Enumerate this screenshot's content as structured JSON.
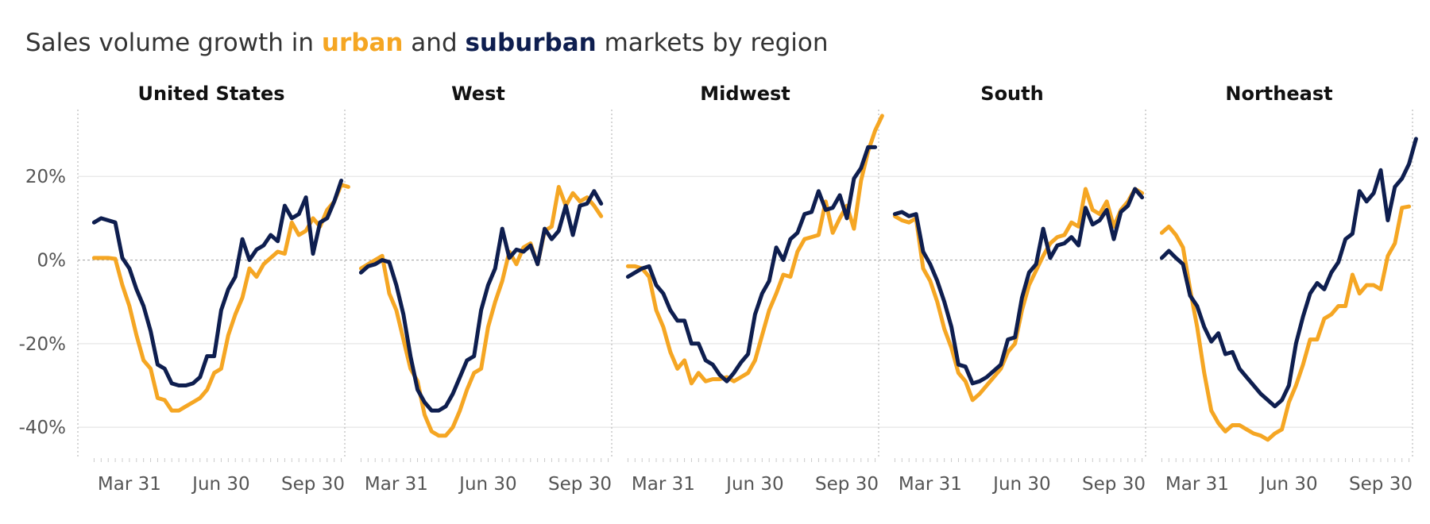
{
  "title": {
    "prefix": "Sales volume growth in ",
    "urban": "urban",
    "middle": " and ",
    "suburban": "suburban",
    "suffix": " markets by region"
  },
  "colors": {
    "urban": "#F5A623",
    "suburban": "#0E1E4F",
    "grid": "#e6e6e6",
    "zero_line": "#aaaaaa",
    "divider": "#bbbbbb"
  },
  "chart_data": {
    "type": "line",
    "grid": true,
    "ylim": [
      -0.47,
      0.36
    ],
    "y_ticks": [
      {
        "value": 0.2,
        "label": "20%"
      },
      {
        "value": 0.0,
        "label": "0%"
      },
      {
        "value": -0.2,
        "label": "-20%"
      },
      {
        "value": -0.4,
        "label": "-40%"
      }
    ],
    "x_ticks": [
      {
        "week": 5,
        "label": "Mar 31"
      },
      {
        "week": 18,
        "label": "Jun 30"
      },
      {
        "week": 31,
        "label": "Sep 30"
      }
    ],
    "x_range": [
      -2.3,
      35.5
    ],
    "panels": [
      {
        "name": "United States",
        "series": [
          {
            "name": "urban",
            "values": [
              0.005,
              0.005,
              0.005,
              0.003,
              -0.06,
              -0.11,
              -0.18,
              -0.24,
              -0.26,
              -0.33,
              -0.335,
              -0.36,
              -0.36,
              -0.35,
              -0.34,
              -0.33,
              -0.31,
              -0.27,
              -0.26,
              -0.18,
              -0.13,
              -0.09,
              -0.02,
              -0.04,
              -0.01,
              0.005,
              0.02,
              0.015,
              0.09,
              0.06,
              0.07,
              0.1,
              0.08,
              0.12,
              0.14,
              0.18,
              0.175
            ]
          },
          {
            "name": "suburban",
            "values": [
              0.09,
              0.1,
              0.095,
              0.09,
              0.005,
              -0.02,
              -0.07,
              -0.11,
              -0.17,
              -0.25,
              -0.26,
              -0.295,
              -0.3,
              -0.3,
              -0.295,
              -0.28,
              -0.23,
              -0.23,
              -0.12,
              -0.07,
              -0.04,
              0.05,
              0.0,
              0.025,
              0.035,
              0.06,
              0.045,
              0.13,
              0.1,
              0.11,
              0.15,
              0.015,
              0.09,
              0.1,
              0.14,
              0.19
            ]
          }
        ]
      },
      {
        "name": "West",
        "series": [
          {
            "name": "urban",
            "values": [
              -0.02,
              -0.01,
              0.0,
              0.01,
              -0.08,
              -0.12,
              -0.19,
              -0.26,
              -0.29,
              -0.37,
              -0.41,
              -0.42,
              -0.42,
              -0.4,
              -0.36,
              -0.31,
              -0.27,
              -0.26,
              -0.16,
              -0.1,
              -0.05,
              0.02,
              -0.01,
              0.03,
              0.04,
              -0.01,
              0.07,
              0.08,
              0.175,
              0.13,
              0.16,
              0.14,
              0.15,
              0.13,
              0.105
            ]
          },
          {
            "name": "suburban",
            "values": [
              -0.03,
              -0.015,
              -0.01,
              0.0,
              -0.005,
              -0.06,
              -0.13,
              -0.23,
              -0.31,
              -0.34,
              -0.36,
              -0.36,
              -0.35,
              -0.32,
              -0.28,
              -0.24,
              -0.23,
              -0.12,
              -0.06,
              -0.02,
              0.075,
              0.005,
              0.025,
              0.02,
              0.035,
              -0.01,
              0.075,
              0.05,
              0.07,
              0.13,
              0.06,
              0.13,
              0.135,
              0.165,
              0.135
            ]
          }
        ]
      },
      {
        "name": "Midwest",
        "series": [
          {
            "name": "urban",
            "values": [
              -0.015,
              -0.015,
              -0.02,
              -0.04,
              -0.12,
              -0.16,
              -0.22,
              -0.26,
              -0.24,
              -0.295,
              -0.27,
              -0.29,
              -0.285,
              -0.285,
              -0.28,
              -0.29,
              -0.28,
              -0.27,
              -0.24,
              -0.18,
              -0.12,
              -0.08,
              -0.035,
              -0.04,
              0.02,
              0.05,
              0.055,
              0.06,
              0.14,
              0.065,
              0.1,
              0.13,
              0.075,
              0.19,
              0.26,
              0.31,
              0.345
            ]
          },
          {
            "name": "suburban",
            "values": [
              -0.04,
              -0.03,
              -0.02,
              -0.015,
              -0.06,
              -0.08,
              -0.12,
              -0.145,
              -0.145,
              -0.2,
              -0.2,
              -0.24,
              -0.25,
              -0.275,
              -0.29,
              -0.27,
              -0.245,
              -0.225,
              -0.13,
              -0.08,
              -0.05,
              0.03,
              0.0,
              0.05,
              0.065,
              0.11,
              0.115,
              0.165,
              0.12,
              0.125,
              0.155,
              0.1,
              0.195,
              0.22,
              0.27,
              0.27
            ]
          }
        ]
      },
      {
        "name": "South",
        "series": [
          {
            "name": "urban",
            "values": [
              0.105,
              0.095,
              0.09,
              0.1,
              -0.02,
              -0.05,
              -0.1,
              -0.165,
              -0.21,
              -0.27,
              -0.29,
              -0.335,
              -0.32,
              -0.3,
              -0.28,
              -0.26,
              -0.22,
              -0.2,
              -0.12,
              -0.06,
              -0.025,
              0.01,
              0.04,
              0.055,
              0.06,
              0.09,
              0.08,
              0.17,
              0.12,
              0.11,
              0.14,
              0.08,
              0.12,
              0.14,
              0.17,
              0.16
            ]
          },
          {
            "name": "suburban",
            "values": [
              0.11,
              0.115,
              0.105,
              0.11,
              0.02,
              -0.01,
              -0.05,
              -0.1,
              -0.16,
              -0.25,
              -0.255,
              -0.295,
              -0.29,
              -0.28,
              -0.265,
              -0.25,
              -0.19,
              -0.185,
              -0.09,
              -0.03,
              -0.01,
              0.075,
              0.005,
              0.035,
              0.04,
              0.055,
              0.035,
              0.125,
              0.085,
              0.095,
              0.12,
              0.05,
              0.115,
              0.13,
              0.17,
              0.15
            ]
          }
        ]
      },
      {
        "name": "Northeast",
        "series": [
          {
            "name": "urban",
            "values": [
              0.065,
              0.08,
              0.06,
              0.03,
              -0.07,
              -0.16,
              -0.27,
              -0.36,
              -0.39,
              -0.41,
              -0.395,
              -0.395,
              -0.405,
              -0.415,
              -0.42,
              -0.43,
              -0.415,
              -0.405,
              -0.34,
              -0.3,
              -0.25,
              -0.19,
              -0.19,
              -0.14,
              -0.13,
              -0.11,
              -0.11,
              -0.035,
              -0.08,
              -0.06,
              -0.06,
              -0.07,
              0.01,
              0.04,
              0.125,
              0.128
            ]
          },
          {
            "name": "suburban",
            "values": [
              0.005,
              0.022,
              0.005,
              -0.01,
              -0.085,
              -0.11,
              -0.16,
              -0.195,
              -0.175,
              -0.225,
              -0.22,
              -0.26,
              -0.28,
              -0.3,
              -0.32,
              -0.335,
              -0.35,
              -0.335,
              -0.3,
              -0.2,
              -0.135,
              -0.08,
              -0.055,
              -0.07,
              -0.03,
              -0.005,
              0.05,
              0.063,
              0.165,
              0.14,
              0.16,
              0.215,
              0.095,
              0.175,
              0.195,
              0.23,
              0.29
            ]
          }
        ]
      }
    ]
  }
}
